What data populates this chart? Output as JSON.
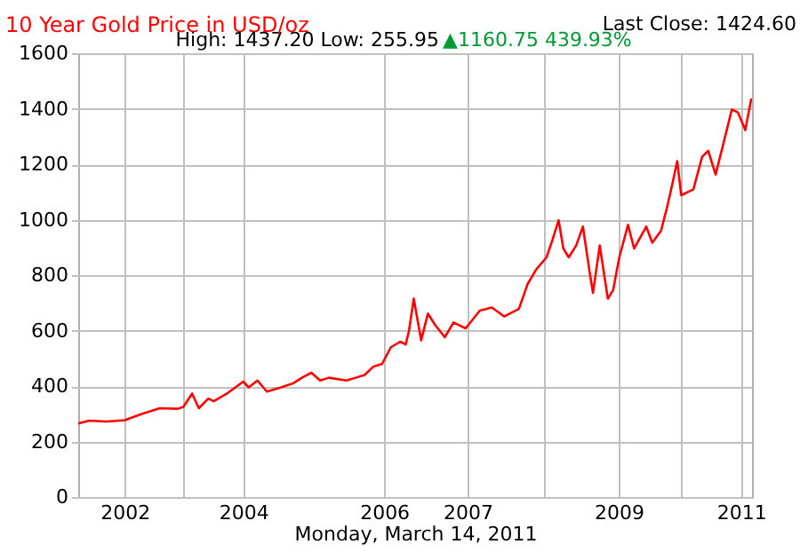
{
  "chart_data": {
    "type": "line",
    "title": "10 Year Gold Price in USD/oz",
    "xlabel": "Monday, March 14, 2011",
    "annotations": [
      "Last Close: 1424.60",
      "High: 1437.20 Low: 255.95",
      "▲1160.75 439.93%"
    ],
    "x": [
      2001.2,
      2001.36,
      2001.62,
      2001.89,
      2002.15,
      2002.41,
      2002.68,
      2002.76,
      2002.89,
      2002.99,
      2003.13,
      2003.21,
      2003.42,
      2003.65,
      2003.73,
      2003.86,
      2004.0,
      2004.21,
      2004.39,
      2004.52,
      2004.66,
      2004.79,
      2004.92,
      2005.18,
      2005.32,
      2005.45,
      2005.58,
      2005.71,
      2005.84,
      2005.98,
      2006.06,
      2006.11,
      2006.18,
      2006.29,
      2006.39,
      2006.5,
      2006.64,
      2006.77,
      2006.95,
      2007.16,
      2007.34,
      2007.52,
      2007.74,
      2007.87,
      2008.0,
      2008.15,
      2008.24,
      2008.33,
      2008.4,
      2008.48,
      2008.59,
      2008.69,
      2008.79,
      2008.84,
      2008.94,
      2009.06,
      2009.14,
      2009.23,
      2009.36,
      2009.45,
      2009.63,
      2009.72,
      2009.85,
      2009.94,
      2010.02,
      2010.09,
      2010.15,
      2010.33,
      2010.46,
      2010.55,
      2010.66,
      2010.77,
      2010.9,
      2010.99,
      2011.1,
      2011.19
    ],
    "series": [
      {
        "color": "#ff0000",
        "values": [
          265,
          275,
          272,
          277,
          300,
          320,
          318,
          325,
          373,
          320,
          355,
          345,
          375,
          416,
          395,
          420,
          380,
          395,
          410,
          430,
          448,
          420,
          430,
          420,
          430,
          440,
          470,
          480,
          540,
          560,
          550,
          600,
          715,
          565,
          661,
          619,
          576,
          629,
          608,
          672,
          683,
          651,
          678,
          768,
          821,
          864,
          928,
          998,
          896,
          864,
          907,
          975,
          811,
          736,
          907,
          715,
          747,
          864,
          981,
          896,
          975,
          917,
          960,
          1045,
          1131,
          1211,
          1088,
          1109,
          1227,
          1248,
          1163,
          1269,
          1397,
          1387,
          1323,
          1437
        ]
      }
    ],
    "xlim": [
      2001.2,
      2011.2
    ],
    "xticks": [
      {
        "value": 2001.89,
        "label": "2002"
      },
      {
        "value": 2002.76,
        "label": null
      },
      {
        "value": 2003.65,
        "label": "2004"
      },
      {
        "value": 2005.74,
        "label": "2006"
      },
      {
        "value": 2006.98,
        "label": "2007"
      },
      {
        "value": 2008.11,
        "label": null
      },
      {
        "value": 2009.22,
        "label": "2009"
      },
      {
        "value": 2010.14,
        "label": null
      },
      {
        "value": 2011.04,
        "label": "2011"
      }
    ],
    "ylim": [
      0,
      1600
    ],
    "yticks": [
      0,
      200,
      400,
      600,
      800,
      1000,
      1200,
      1400,
      1600
    ],
    "grid": true,
    "line_style": "solid"
  }
}
